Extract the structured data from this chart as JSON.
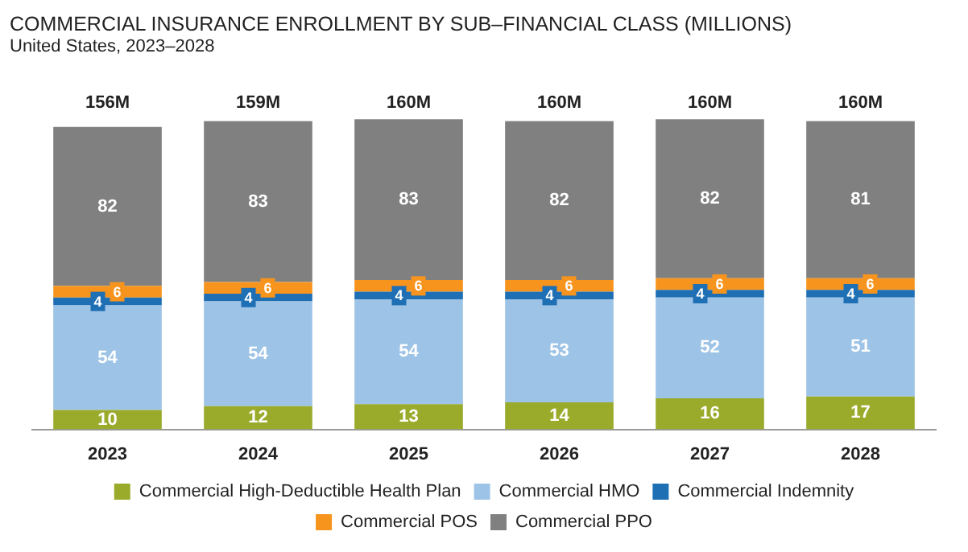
{
  "chart_data": {
    "type": "bar",
    "title": "COMMERCIAL INSURANCE ENROLLMENT BY SUB–FINANCIAL CLASS (MILLIONS)",
    "subtitle": "United States, 2023–2028",
    "categories": [
      "2023",
      "2024",
      "2025",
      "2026",
      "2027",
      "2028"
    ],
    "stacked": true,
    "data_labels": true,
    "legend": "bottom",
    "grid": false,
    "series": [
      {
        "name": "Commercial High-Deductible Health Plan",
        "color": "#9aab2b",
        "values": [
          10,
          12,
          13,
          14,
          16,
          17
        ]
      },
      {
        "name": "Commercial HMO",
        "color": "#9dc3e6",
        "values": [
          54,
          54,
          54,
          53,
          52,
          51
        ]
      },
      {
        "name": "Commercial Indemnity",
        "color": "#1f6fb5",
        "values": [
          4,
          4,
          4,
          4,
          4,
          4
        ]
      },
      {
        "name": "Commercial POS",
        "color": "#f7941d",
        "values": [
          6,
          6,
          6,
          6,
          6,
          6
        ]
      },
      {
        "name": "Commercial PPO",
        "color": "#808080",
        "values": [
          82,
          83,
          83,
          82,
          82,
          81
        ]
      }
    ],
    "totals": [
      "156M",
      "159M",
      "160M",
      "160M",
      "160M",
      "160M"
    ]
  }
}
